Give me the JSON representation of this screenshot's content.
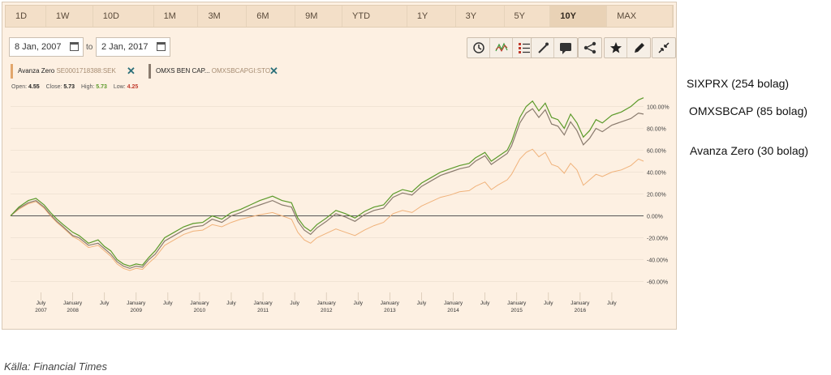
{
  "range_buttons": [
    "1D",
    "1W",
    "10D",
    "1M",
    "3M",
    "6M",
    "9M",
    "YTD",
    "1Y",
    "3Y",
    "5Y",
    "10Y",
    "MAX"
  ],
  "active_range": "10Y",
  "date_from": "8 Jan, 2007",
  "date_to": "2 Jan, 2017",
  "date_to_label": "to",
  "tool_icons": [
    "clock-icon",
    "chart-type-icon",
    "indicators-icon",
    "draw-icon",
    "comment-icon",
    "share-icon",
    "favorite-icon",
    "edit-icon",
    "collapse-icon"
  ],
  "series_chips": [
    {
      "name": "Avanza Zero",
      "symbol": "SE0001718388:SEK",
      "color": "#e2a66c"
    },
    {
      "name": "OMXS BEN CAP...",
      "symbol": "OMXSBCAPGI:STO",
      "color": "#8a7b6e"
    }
  ],
  "ohlc": {
    "open_label": "Open:",
    "open": "4.55",
    "close_label": "Close:",
    "close": "5.73",
    "high_label": "High:",
    "high": "5.73",
    "low_label": "Low:",
    "low": "4.25"
  },
  "colors": {
    "sixprx": "#5b9a2a",
    "omxsbcap": "#8a7b6e",
    "avanza": "#f0b27a",
    "below_zero": "#8a3d2a"
  },
  "chart_data": {
    "type": "line",
    "y_unit": "%",
    "ylim": [
      -70,
      110
    ],
    "y_ticks": [
      100,
      80,
      60,
      40,
      20,
      0,
      -20,
      -40,
      -60
    ],
    "y_tick_labels": [
      "100.00%",
      "80.00%",
      "60.00%",
      "40.00%",
      "20.00%",
      "0.00%",
      "-20.00%",
      "-40.00%",
      "-60.00%"
    ],
    "xlim": [
      2007.02,
      2017.0
    ],
    "x_ticks": [
      {
        "t": 2007.5,
        "line1": "July",
        "line2": "2007"
      },
      {
        "t": 2008.0,
        "line1": "January",
        "line2": "2008"
      },
      {
        "t": 2008.5,
        "line1": "July",
        "line2": ""
      },
      {
        "t": 2009.0,
        "line1": "January",
        "line2": "2009"
      },
      {
        "t": 2009.5,
        "line1": "July",
        "line2": ""
      },
      {
        "t": 2010.0,
        "line1": "January",
        "line2": "2010"
      },
      {
        "t": 2010.5,
        "line1": "July",
        "line2": ""
      },
      {
        "t": 2011.0,
        "line1": "January",
        "line2": "2011"
      },
      {
        "t": 2011.5,
        "line1": "July",
        "line2": ""
      },
      {
        "t": 2012.0,
        "line1": "January",
        "line2": "2012"
      },
      {
        "t": 2012.5,
        "line1": "July",
        "line2": ""
      },
      {
        "t": 2013.0,
        "line1": "January",
        "line2": "2013"
      },
      {
        "t": 2013.5,
        "line1": "July",
        "line2": ""
      },
      {
        "t": 2014.0,
        "line1": "January",
        "line2": "2014"
      },
      {
        "t": 2014.5,
        "line1": "July",
        "line2": ""
      },
      {
        "t": 2015.0,
        "line1": "January",
        "line2": "2015"
      },
      {
        "t": 2015.5,
        "line1": "July",
        "line2": ""
      },
      {
        "t": 2016.0,
        "line1": "January",
        "line2": "2016"
      },
      {
        "t": 2016.5,
        "line1": "July",
        "line2": ""
      }
    ],
    "series": [
      {
        "name": "SIXPRX (254 bolag)",
        "key": "sixprx",
        "points": [
          [
            2007.02,
            0
          ],
          [
            2007.15,
            8
          ],
          [
            2007.3,
            14
          ],
          [
            2007.42,
            16
          ],
          [
            2007.55,
            10
          ],
          [
            2007.65,
            3
          ],
          [
            2007.75,
            -3
          ],
          [
            2007.85,
            -8
          ],
          [
            2008.0,
            -15
          ],
          [
            2008.1,
            -18
          ],
          [
            2008.25,
            -25
          ],
          [
            2008.4,
            -22
          ],
          [
            2008.5,
            -28
          ],
          [
            2008.6,
            -32
          ],
          [
            2008.7,
            -40
          ],
          [
            2008.8,
            -44
          ],
          [
            2008.9,
            -46
          ],
          [
            2009.0,
            -44
          ],
          [
            2009.1,
            -45
          ],
          [
            2009.2,
            -38
          ],
          [
            2009.3,
            -32
          ],
          [
            2009.45,
            -20
          ],
          [
            2009.6,
            -15
          ],
          [
            2009.75,
            -10
          ],
          [
            2009.9,
            -7
          ],
          [
            2010.05,
            -6
          ],
          [
            2010.2,
            0
          ],
          [
            2010.35,
            -3
          ],
          [
            2010.5,
            3
          ],
          [
            2010.65,
            6
          ],
          [
            2010.8,
            10
          ],
          [
            2010.95,
            14
          ],
          [
            2011.05,
            16
          ],
          [
            2011.15,
            18
          ],
          [
            2011.3,
            14
          ],
          [
            2011.45,
            12
          ],
          [
            2011.55,
            -2
          ],
          [
            2011.65,
            -10
          ],
          [
            2011.75,
            -14
          ],
          [
            2011.85,
            -8
          ],
          [
            2012.0,
            -2
          ],
          [
            2012.15,
            5
          ],
          [
            2012.3,
            2
          ],
          [
            2012.45,
            -2
          ],
          [
            2012.6,
            4
          ],
          [
            2012.75,
            8
          ],
          [
            2012.9,
            10
          ],
          [
            2013.05,
            20
          ],
          [
            2013.2,
            24
          ],
          [
            2013.35,
            22
          ],
          [
            2013.5,
            30
          ],
          [
            2013.65,
            35
          ],
          [
            2013.8,
            40
          ],
          [
            2013.95,
            43
          ],
          [
            2014.1,
            46
          ],
          [
            2014.25,
            48
          ],
          [
            2014.35,
            53
          ],
          [
            2014.5,
            58
          ],
          [
            2014.6,
            50
          ],
          [
            2014.7,
            54
          ],
          [
            2014.85,
            60
          ],
          [
            2014.92,
            68
          ],
          [
            2015.05,
            90
          ],
          [
            2015.15,
            100
          ],
          [
            2015.25,
            105
          ],
          [
            2015.35,
            96
          ],
          [
            2015.45,
            103
          ],
          [
            2015.55,
            90
          ],
          [
            2015.65,
            88
          ],
          [
            2015.75,
            80
          ],
          [
            2015.85,
            93
          ],
          [
            2015.95,
            85
          ],
          [
            2016.05,
            72
          ],
          [
            2016.15,
            78
          ],
          [
            2016.25,
            88
          ],
          [
            2016.35,
            85
          ],
          [
            2016.5,
            92
          ],
          [
            2016.65,
            95
          ],
          [
            2016.8,
            100
          ],
          [
            2016.92,
            106
          ],
          [
            2017.0,
            108
          ]
        ]
      },
      {
        "name": "OMXSBCAP (85 bolag)",
        "key": "omxsbcap",
        "points": [
          [
            2007.02,
            0
          ],
          [
            2007.15,
            7
          ],
          [
            2007.3,
            12
          ],
          [
            2007.42,
            14
          ],
          [
            2007.55,
            8
          ],
          [
            2007.65,
            1
          ],
          [
            2007.75,
            -5
          ],
          [
            2007.85,
            -10
          ],
          [
            2008.0,
            -18
          ],
          [
            2008.1,
            -20
          ],
          [
            2008.25,
            -27
          ],
          [
            2008.4,
            -25
          ],
          [
            2008.5,
            -30
          ],
          [
            2008.6,
            -35
          ],
          [
            2008.7,
            -42
          ],
          [
            2008.8,
            -46
          ],
          [
            2008.9,
            -48
          ],
          [
            2009.0,
            -46
          ],
          [
            2009.1,
            -47
          ],
          [
            2009.2,
            -40
          ],
          [
            2009.3,
            -35
          ],
          [
            2009.45,
            -23
          ],
          [
            2009.6,
            -18
          ],
          [
            2009.75,
            -13
          ],
          [
            2009.9,
            -10
          ],
          [
            2010.05,
            -9
          ],
          [
            2010.2,
            -3
          ],
          [
            2010.35,
            -6
          ],
          [
            2010.5,
            0
          ],
          [
            2010.65,
            3
          ],
          [
            2010.8,
            7
          ],
          [
            2010.95,
            10
          ],
          [
            2011.05,
            12
          ],
          [
            2011.15,
            14
          ],
          [
            2011.3,
            10
          ],
          [
            2011.45,
            8
          ],
          [
            2011.55,
            -5
          ],
          [
            2011.65,
            -13
          ],
          [
            2011.75,
            -17
          ],
          [
            2011.85,
            -11
          ],
          [
            2012.0,
            -5
          ],
          [
            2012.15,
            2
          ],
          [
            2012.3,
            -1
          ],
          [
            2012.45,
            -5
          ],
          [
            2012.6,
            1
          ],
          [
            2012.75,
            5
          ],
          [
            2012.9,
            7
          ],
          [
            2013.05,
            17
          ],
          [
            2013.2,
            21
          ],
          [
            2013.35,
            19
          ],
          [
            2013.5,
            27
          ],
          [
            2013.65,
            32
          ],
          [
            2013.8,
            37
          ],
          [
            2013.95,
            40
          ],
          [
            2014.1,
            43
          ],
          [
            2014.25,
            45
          ],
          [
            2014.35,
            50
          ],
          [
            2014.5,
            55
          ],
          [
            2014.6,
            47
          ],
          [
            2014.7,
            51
          ],
          [
            2014.85,
            57
          ],
          [
            2014.92,
            64
          ],
          [
            2015.05,
            85
          ],
          [
            2015.15,
            94
          ],
          [
            2015.25,
            98
          ],
          [
            2015.35,
            90
          ],
          [
            2015.45,
            97
          ],
          [
            2015.55,
            84
          ],
          [
            2015.65,
            82
          ],
          [
            2015.75,
            74
          ],
          [
            2015.85,
            86
          ],
          [
            2015.95,
            78
          ],
          [
            2016.05,
            65
          ],
          [
            2016.15,
            71
          ],
          [
            2016.25,
            80
          ],
          [
            2016.35,
            77
          ],
          [
            2016.5,
            83
          ],
          [
            2016.65,
            86
          ],
          [
            2016.8,
            89
          ],
          [
            2016.92,
            94
          ],
          [
            2017.0,
            93
          ]
        ]
      },
      {
        "name": "Avanza Zero (30 bolag)",
        "key": "avanza",
        "points": [
          [
            2007.02,
            0
          ],
          [
            2007.15,
            6
          ],
          [
            2007.3,
            11
          ],
          [
            2007.42,
            13
          ],
          [
            2007.55,
            7
          ],
          [
            2007.65,
            0
          ],
          [
            2007.75,
            -6
          ],
          [
            2007.85,
            -11
          ],
          [
            2008.0,
            -19
          ],
          [
            2008.1,
            -22
          ],
          [
            2008.25,
            -29
          ],
          [
            2008.4,
            -27
          ],
          [
            2008.5,
            -32
          ],
          [
            2008.6,
            -37
          ],
          [
            2008.7,
            -44
          ],
          [
            2008.8,
            -48
          ],
          [
            2008.9,
            -50
          ],
          [
            2009.0,
            -48
          ],
          [
            2009.1,
            -49
          ],
          [
            2009.2,
            -43
          ],
          [
            2009.3,
            -38
          ],
          [
            2009.45,
            -27
          ],
          [
            2009.6,
            -22
          ],
          [
            2009.75,
            -17
          ],
          [
            2009.9,
            -14
          ],
          [
            2010.05,
            -13
          ],
          [
            2010.2,
            -8
          ],
          [
            2010.35,
            -10
          ],
          [
            2010.5,
            -6
          ],
          [
            2010.65,
            -3
          ],
          [
            2010.8,
            -1
          ],
          [
            2010.95,
            1
          ],
          [
            2011.05,
            2
          ],
          [
            2011.15,
            3
          ],
          [
            2011.3,
            0
          ],
          [
            2011.45,
            -3
          ],
          [
            2011.55,
            -15
          ],
          [
            2011.65,
            -22
          ],
          [
            2011.75,
            -25
          ],
          [
            2011.85,
            -20
          ],
          [
            2012.0,
            -16
          ],
          [
            2012.15,
            -12
          ],
          [
            2012.3,
            -15
          ],
          [
            2012.45,
            -18
          ],
          [
            2012.6,
            -13
          ],
          [
            2012.75,
            -9
          ],
          [
            2012.9,
            -6
          ],
          [
            2013.05,
            2
          ],
          [
            2013.2,
            5
          ],
          [
            2013.35,
            3
          ],
          [
            2013.5,
            9
          ],
          [
            2013.65,
            13
          ],
          [
            2013.8,
            17
          ],
          [
            2013.95,
            19
          ],
          [
            2014.1,
            22
          ],
          [
            2014.25,
            23
          ],
          [
            2014.35,
            27
          ],
          [
            2014.5,
            31
          ],
          [
            2014.6,
            24
          ],
          [
            2014.7,
            28
          ],
          [
            2014.85,
            33
          ],
          [
            2014.92,
            38
          ],
          [
            2015.05,
            52
          ],
          [
            2015.15,
            58
          ],
          [
            2015.25,
            61
          ],
          [
            2015.35,
            54
          ],
          [
            2015.45,
            58
          ],
          [
            2015.55,
            47
          ],
          [
            2015.65,
            45
          ],
          [
            2015.75,
            39
          ],
          [
            2015.85,
            48
          ],
          [
            2015.95,
            42
          ],
          [
            2016.05,
            28
          ],
          [
            2016.15,
            33
          ],
          [
            2016.25,
            38
          ],
          [
            2016.35,
            36
          ],
          [
            2016.5,
            40
          ],
          [
            2016.65,
            42
          ],
          [
            2016.8,
            46
          ],
          [
            2016.92,
            52
          ],
          [
            2017.0,
            50
          ]
        ]
      }
    ]
  },
  "caption": "Källa: Financial Times"
}
